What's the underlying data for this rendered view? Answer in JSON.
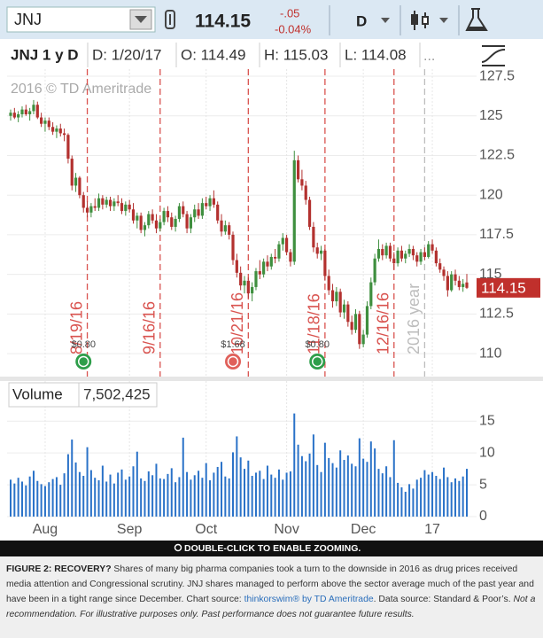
{
  "toolbar": {
    "symbol": "JNJ",
    "last": "114.15",
    "change": "-.05",
    "change_pct": "-0.04%",
    "period": "D"
  },
  "legend": {
    "title": "JNJ 1 y D",
    "date": "D: 1/20/17",
    "open": "O: 114.49",
    "high": "H: 115.03",
    "low": "L: 114.08"
  },
  "watermark": "2016 © TD Ameritrade",
  "zoom_hint": "DOUBLE-CLICK TO ENABLE ZOOMING.",
  "caption": {
    "figure": "FIGURE 2: RECOVERY?",
    "text": " Shares of many big pharma companies took a turn to the downside in 2016 as drug prices received media attention and Congressional scrutiny. JNJ shares managed to perform above the sector average much of the past year and have been in a tight range since December. Chart source: ",
    "source": "thinkorswim® by TD Ameritrade",
    "data_source": ".  Data source: Standard & Poor’s. ",
    "disclaimer": "Not a recommendation. For illustrative purposes only. Past performance does not guarantee future results."
  },
  "chart_data": {
    "type": "candlestick",
    "up_color": "#3f8f3f",
    "down_color": "#b3312f",
    "grid": true,
    "ylim": [
      108.55,
      127.95
    ],
    "yticks": [
      110,
      112.5,
      115,
      117.5,
      120,
      122.5,
      125,
      127.5
    ],
    "categories": [
      null,
      null,
      null,
      null,
      null,
      null,
      null,
      null,
      null,
      "Aug",
      null,
      null,
      null,
      null,
      null,
      null,
      null,
      null,
      null,
      null,
      null,
      null,
      null,
      null,
      null,
      null,
      null,
      null,
      null,
      null,
      null,
      "Sep",
      null,
      null,
      null,
      null,
      null,
      null,
      null,
      null,
      null,
      null,
      null,
      null,
      null,
      null,
      null,
      null,
      null,
      null,
      null,
      "Oct",
      null,
      null,
      null,
      null,
      null,
      null,
      null,
      null,
      null,
      null,
      null,
      null,
      null,
      null,
      null,
      null,
      null,
      null,
      null,
      null,
      "Nov",
      null,
      null,
      null,
      null,
      null,
      null,
      null,
      null,
      null,
      null,
      null,
      null,
      null,
      null,
      null,
      null,
      null,
      null,
      null,
      "Dec",
      null,
      null,
      null,
      null,
      null,
      null,
      null,
      null,
      null,
      null,
      null,
      null,
      null,
      null,
      null,
      null,
      null,
      "17",
      null,
      null,
      null,
      null,
      null,
      null,
      null,
      null,
      null
    ],
    "ohlc": [
      [
        125.0,
        125.4,
        124.7,
        125.2
      ],
      [
        125.2,
        125.5,
        124.8,
        124.9
      ],
      [
        124.9,
        125.3,
        124.6,
        125.1
      ],
      [
        125.1,
        125.6,
        124.9,
        125.4
      ],
      [
        125.4,
        125.7,
        125.0,
        125.1
      ],
      [
        125.1,
        125.5,
        124.7,
        125.3
      ],
      [
        125.3,
        126.0,
        125.1,
        125.7
      ],
      [
        125.7,
        125.9,
        124.8,
        124.9
      ],
      [
        124.9,
        125.2,
        124.3,
        124.5
      ],
      [
        124.5,
        124.9,
        124.0,
        124.7
      ],
      [
        124.7,
        124.9,
        124.1,
        124.3
      ],
      [
        124.3,
        124.6,
        123.8,
        124.0
      ],
      [
        124.0,
        124.4,
        123.6,
        124.2
      ],
      [
        124.2,
        124.5,
        123.7,
        123.9
      ],
      [
        123.9,
        124.2,
        123.4,
        123.8
      ],
      [
        123.8,
        123.9,
        122.0,
        122.3
      ],
      [
        122.3,
        122.5,
        120.3,
        120.6
      ],
      [
        120.6,
        121.4,
        120.2,
        121.1
      ],
      [
        121.1,
        121.2,
        119.8,
        120.0
      ],
      [
        120.0,
        120.2,
        118.9,
        119.2
      ],
      [
        119.2,
        119.6,
        118.6,
        118.9
      ],
      [
        118.9,
        119.5,
        118.6,
        119.3
      ],
      [
        119.3,
        119.8,
        119.0,
        119.2
      ],
      [
        119.2,
        120.1,
        119.0,
        119.8
      ],
      [
        119.8,
        120.0,
        119.1,
        119.4
      ],
      [
        119.4,
        119.9,
        119.2,
        119.7
      ],
      [
        119.7,
        119.9,
        119.0,
        119.3
      ],
      [
        119.3,
        119.8,
        119.0,
        119.6
      ],
      [
        119.6,
        120.0,
        119.3,
        119.5
      ],
      [
        119.5,
        119.8,
        118.8,
        119.0
      ],
      [
        119.0,
        119.6,
        118.7,
        119.4
      ],
      [
        119.4,
        119.7,
        118.9,
        119.1
      ],
      [
        119.1,
        119.5,
        118.2,
        118.4
      ],
      [
        118.4,
        118.9,
        117.9,
        118.7
      ],
      [
        118.7,
        118.9,
        117.6,
        117.8
      ],
      [
        117.8,
        118.3,
        117.4,
        118.1
      ],
      [
        118.1,
        119.0,
        117.9,
        118.8
      ],
      [
        118.8,
        119.1,
        118.2,
        118.4
      ],
      [
        118.4,
        118.8,
        117.6,
        117.9
      ],
      [
        117.9,
        118.5,
        117.7,
        118.3
      ],
      [
        118.3,
        119.2,
        118.1,
        119.0
      ],
      [
        119.0,
        119.3,
        118.3,
        118.6
      ],
      [
        118.6,
        118.9,
        117.8,
        118.0
      ],
      [
        118.0,
        118.7,
        117.7,
        118.5
      ],
      [
        118.5,
        119.5,
        118.3,
        119.3
      ],
      [
        119.3,
        119.6,
        118.6,
        118.8
      ],
      [
        118.8,
        119.0,
        117.6,
        117.9
      ],
      [
        117.9,
        118.8,
        117.6,
        118.6
      ],
      [
        118.6,
        119.4,
        118.3,
        119.1
      ],
      [
        119.1,
        119.5,
        118.5,
        118.7
      ],
      [
        118.7,
        119.8,
        118.5,
        119.5
      ],
      [
        119.5,
        119.9,
        119.1,
        119.3
      ],
      [
        119.3,
        120.0,
        119.0,
        119.8
      ],
      [
        119.8,
        120.3,
        119.2,
        119.4
      ],
      [
        119.4,
        119.6,
        118.2,
        118.4
      ],
      [
        118.4,
        118.8,
        117.4,
        117.7
      ],
      [
        117.7,
        118.4,
        117.5,
        118.1
      ],
      [
        118.1,
        118.3,
        117.2,
        117.5
      ],
      [
        117.5,
        117.7,
        115.6,
        115.9
      ],
      [
        115.9,
        116.3,
        114.8,
        115.1
      ],
      [
        115.1,
        115.5,
        114.0,
        114.3
      ],
      [
        114.3,
        114.9,
        113.8,
        114.6
      ],
      [
        114.6,
        114.8,
        113.5,
        113.8
      ],
      [
        113.8,
        114.5,
        113.3,
        114.2
      ],
      [
        114.2,
        115.4,
        114.0,
        115.2
      ],
      [
        115.2,
        115.9,
        114.7,
        115.0
      ],
      [
        115.0,
        116.0,
        114.8,
        115.8
      ],
      [
        115.8,
        116.2,
        115.2,
        115.5
      ],
      [
        115.5,
        116.3,
        115.3,
        116.1
      ],
      [
        116.1,
        116.6,
        115.7,
        116.0
      ],
      [
        116.0,
        117.1,
        115.8,
        116.9
      ],
      [
        116.9,
        117.6,
        116.5,
        117.3
      ],
      [
        117.3,
        117.5,
        116.2,
        116.4
      ],
      [
        116.4,
        116.6,
        115.5,
        115.8
      ],
      [
        115.8,
        122.8,
        115.6,
        122.2
      ],
      [
        122.2,
        122.5,
        120.8,
        121.0
      ],
      [
        121.0,
        121.6,
        120.3,
        120.6
      ],
      [
        120.6,
        120.9,
        119.4,
        119.7
      ],
      [
        119.7,
        119.9,
        117.8,
        118.0
      ],
      [
        118.0,
        118.3,
        116.4,
        116.7
      ],
      [
        116.7,
        117.0,
        116.0,
        116.3
      ],
      [
        116.3,
        116.8,
        115.9,
        116.5
      ],
      [
        116.5,
        116.6,
        114.6,
        114.9
      ],
      [
        114.9,
        115.3,
        113.7,
        114.0
      ],
      [
        114.0,
        114.4,
        112.9,
        113.3
      ],
      [
        113.3,
        114.2,
        113.0,
        113.9
      ],
      [
        113.9,
        114.1,
        112.3,
        112.6
      ],
      [
        112.6,
        113.4,
        112.2,
        113.1
      ],
      [
        113.1,
        113.3,
        111.7,
        112.0
      ],
      [
        112.0,
        112.4,
        111.2,
        111.5
      ],
      [
        111.5,
        112.8,
        111.3,
        112.5
      ],
      [
        112.5,
        112.7,
        110.3,
        110.6
      ],
      [
        110.6,
        111.5,
        110.4,
        111.2
      ],
      [
        111.2,
        113.3,
        111.0,
        113.0
      ],
      [
        113.0,
        114.8,
        112.8,
        114.5
      ],
      [
        114.5,
        116.3,
        114.3,
        116.0
      ],
      [
        116.0,
        117.2,
        115.8,
        116.6
      ],
      [
        116.6,
        116.9,
        115.9,
        116.2
      ],
      [
        116.2,
        117.0,
        116.0,
        116.8
      ],
      [
        116.8,
        117.0,
        115.8,
        116.0
      ],
      [
        116.0,
        116.4,
        115.3,
        115.7
      ],
      [
        115.7,
        116.7,
        115.5,
        116.5
      ],
      [
        116.5,
        116.8,
        115.8,
        116.0
      ],
      [
        116.0,
        116.5,
        115.7,
        116.3
      ],
      [
        116.3,
        116.9,
        116.1,
        116.6
      ],
      [
        116.6,
        116.8,
        115.9,
        116.2
      ],
      [
        116.2,
        116.4,
        115.5,
        115.8
      ],
      [
        115.8,
        116.6,
        115.6,
        116.4
      ],
      [
        116.4,
        116.7,
        115.9,
        116.1
      ],
      [
        116.1,
        117.1,
        116.0,
        116.9
      ],
      [
        116.9,
        117.2,
        116.3,
        116.5
      ],
      [
        116.5,
        116.7,
        115.5,
        115.7
      ],
      [
        115.7,
        116.0,
        115.1,
        115.3
      ],
      [
        115.3,
        115.5,
        114.6,
        114.9
      ],
      [
        114.9,
        115.2,
        113.6,
        114.0
      ],
      [
        114.0,
        115.2,
        113.9,
        115.0
      ],
      [
        115.0,
        115.3,
        114.3,
        114.6
      ],
      [
        114.6,
        114.9,
        114.0,
        114.2
      ],
      [
        114.2,
        114.7,
        113.9,
        114.4
      ],
      [
        114.49,
        115.03,
        114.08,
        114.15
      ]
    ],
    "last_color": "#c0302c",
    "events": [
      {
        "at": 20,
        "label": "8/19/16",
        "color": "#d9534f"
      },
      {
        "at": 39,
        "label": "9/16/16",
        "color": "#d9534f"
      },
      {
        "at": 62,
        "label": "10/21/16",
        "color": "#d9534f"
      },
      {
        "at": 82,
        "label": "11/18/16",
        "color": "#d9534f"
      },
      {
        "at": 100,
        "label": "12/16/16",
        "color": "#d9534f"
      },
      {
        "at": 108,
        "label": "2016 year",
        "color": "#bdbdbd"
      }
    ],
    "dividends": [
      {
        "at": 19,
        "label": "$0.80",
        "color": "#2e9e4a"
      },
      {
        "at": 58,
        "label": "$1.68",
        "color": "#e0605a"
      },
      {
        "at": 80,
        "label": "$0.80",
        "color": "#2e9e4a"
      }
    ],
    "volume": {
      "title": "Volume",
      "current_label": "7,502,425",
      "color": "#2a72c8",
      "ylim": [
        0,
        16.7
      ],
      "yticks": [
        0,
        5,
        10,
        15
      ],
      "values": [
        5.8,
        5.2,
        6.1,
        5.5,
        4.9,
        6.3,
        7.2,
        5.6,
        5.1,
        4.8,
        5.4,
        5.9,
        6.2,
        5.0,
        6.8,
        9.8,
        12.1,
        8.5,
        7.0,
        6.4,
        10.9,
        7.3,
        6.1,
        5.7,
        8.0,
        5.5,
        6.6,
        5.2,
        6.9,
        7.4,
        5.8,
        6.3,
        7.9,
        10.2,
        6.0,
        5.6,
        7.1,
        6.5,
        8.3,
        6.0,
        5.9,
        6.7,
        7.6,
        5.4,
        6.2,
        12.4,
        7.0,
        5.8,
        6.5,
        7.2,
        6.1,
        8.4,
        5.7,
        6.9,
        7.8,
        8.6,
        6.3,
        6.0,
        10.1,
        12.6,
        9.3,
        7.5,
        8.8,
        6.4,
        6.9,
        7.2,
        5.9,
        8.0,
        6.6,
        6.1,
        7.4,
        5.8,
        6.9,
        7.1,
        16.2,
        11.3,
        9.5,
        8.7,
        9.9,
        12.9,
        8.1,
        7.0,
        11.6,
        9.2,
        8.4,
        7.7,
        10.4,
        8.9,
        9.6,
        8.3,
        7.9,
        12.3,
        9.1,
        8.6,
        11.8,
        10.7,
        7.5,
        6.8,
        7.9,
        6.2,
        12.0,
        5.3,
        4.6,
        3.9,
        5.1,
        4.4,
        5.8,
        6.1,
        7.3,
        6.6,
        7.0,
        6.4,
        5.9,
        7.7,
        6.2,
        5.4,
        6.0,
        5.6,
        6.3,
        7.502425
      ]
    }
  }
}
